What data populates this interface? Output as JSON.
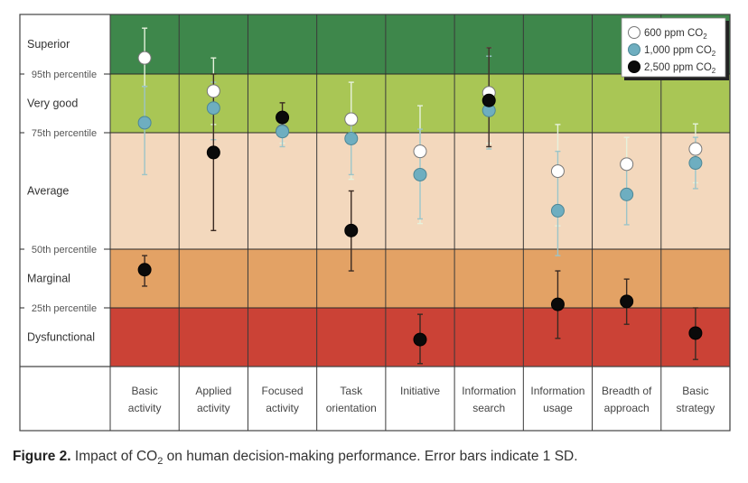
{
  "caption": {
    "label": "Figure 2.",
    "text_before": "Impact of CO",
    "subscript": "2",
    "text_after": " on human decision-making performance. Error bars indicate 1 SD."
  },
  "chart_data": {
    "type": "scatter",
    "title": "",
    "xlabel": "",
    "ylabel": "",
    "y_scale_note": "Values in band units: 0 = bottom, 1 = 25th percentile, 2 = 50th percentile, 3 = 75th percentile, 4 = 95th percentile, 5 = top",
    "ylim": [
      0,
      5
    ],
    "bands": [
      {
        "name": "Superior",
        "from": 4,
        "to": 5,
        "color": "#3e874b"
      },
      {
        "name": "Very good",
        "from": 3,
        "to": 4,
        "color": "#a9c655"
      },
      {
        "name": "Average",
        "from": 2,
        "to": 3,
        "color": "#f3d8bd"
      },
      {
        "name": "Marginal",
        "from": 1,
        "to": 2,
        "color": "#e3a265"
      },
      {
        "name": "Dysfunctional",
        "from": 0,
        "to": 1,
        "color": "#cb4236"
      }
    ],
    "thresholds": [
      {
        "label": "95th percentile",
        "value": 4
      },
      {
        "label": "75th percentile",
        "value": 3
      },
      {
        "label": "50th percentile",
        "value": 2
      },
      {
        "label": "25th percentile",
        "value": 1
      }
    ],
    "categories": [
      [
        "Basic",
        "activity"
      ],
      [
        "Applied",
        "activity"
      ],
      [
        "Focused",
        "activity"
      ],
      [
        "Task",
        "orientation"
      ],
      [
        "Initiative"
      ],
      [
        "Information",
        "search"
      ],
      [
        "Information",
        "usage"
      ],
      [
        "Breadth of",
        "approach"
      ],
      [
        "Basic",
        "strategy"
      ]
    ],
    "legend": {
      "placement": "top-right"
    },
    "series": [
      {
        "name": "600 ppm CO",
        "sub": "2",
        "fill": "#ffffff",
        "stroke": "#777777",
        "bar_color": "#e6f2dc",
        "values": [
          4.27,
          3.71,
          3.03,
          3.23,
          2.84,
          3.68,
          2.67,
          2.73,
          2.86
        ],
        "err_high": [
          4.77,
          4.27,
          3.15,
          3.86,
          3.46,
          4.44,
          3.14,
          2.96,
          3.15
        ],
        "err_low": [
          3.79,
          3.14,
          2.91,
          2.6,
          2.22,
          2.91,
          2.2,
          2.5,
          2.57
        ]
      },
      {
        "name": "1,000 ppm CO",
        "sub": "2",
        "fill": "#6eaec0",
        "stroke": "#4d8796",
        "bar_color": "#9cc4c8",
        "values": [
          3.17,
          3.42,
          3.02,
          2.95,
          2.64,
          3.38,
          2.33,
          2.47,
          2.74
        ],
        "err_high": [
          3.79,
          3.86,
          3.14,
          3.3,
          3.06,
          4.3,
          2.84,
          2.73,
          2.96
        ],
        "err_low": [
          2.64,
          2.94,
          2.88,
          2.64,
          2.26,
          2.86,
          1.89,
          2.21,
          2.52
        ]
      },
      {
        "name": "2,500 ppm CO",
        "sub": "2",
        "fill": "#0a0a0a",
        "stroke": "#000000",
        "bar_color": "#3a2a22",
        "values": [
          1.65,
          2.83,
          3.26,
          2.16,
          0.46,
          3.55,
          1.06,
          1.11,
          0.57
        ],
        "err_high": [
          1.89,
          4.0,
          3.51,
          2.5,
          0.89,
          4.44,
          1.63,
          1.49,
          1.0
        ],
        "err_low": [
          1.37,
          2.16,
          3.02,
          1.63,
          0.05,
          2.88,
          0.48,
          0.72,
          0.12
        ]
      }
    ]
  }
}
